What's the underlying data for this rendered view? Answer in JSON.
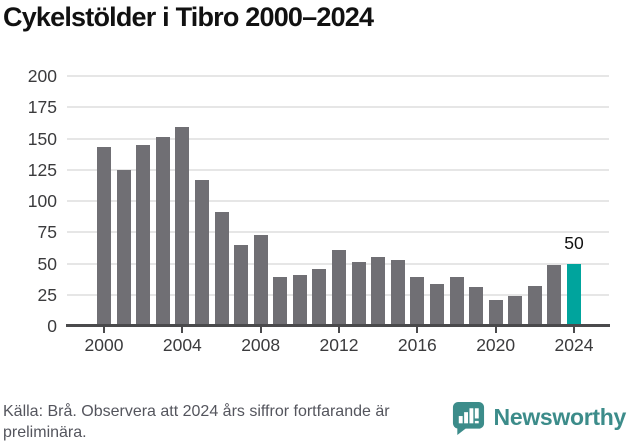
{
  "title": "Cykelstölder i Tibro 2000–2024",
  "chart_data": {
    "type": "bar",
    "title": "Cykelstölder i Tibro 2000–2024",
    "categories": [
      2000,
      2001,
      2002,
      2003,
      2004,
      2005,
      2006,
      2007,
      2008,
      2009,
      2010,
      2011,
      2012,
      2013,
      2014,
      2015,
      2016,
      2017,
      2018,
      2019,
      2020,
      2021,
      2022,
      2023,
      2024
    ],
    "values": [
      143,
      125,
      145,
      151,
      159,
      117,
      91,
      65,
      73,
      39,
      41,
      46,
      61,
      51,
      55,
      53,
      39,
      34,
      39,
      31,
      21,
      24,
      32,
      49,
      50
    ],
    "xlabel": "",
    "ylabel": "",
    "ylim": [
      0,
      200
    ],
    "yticks": [
      0,
      25,
      50,
      75,
      100,
      125,
      150,
      175,
      200
    ],
    "xticks": [
      2000,
      2004,
      2008,
      2012,
      2016,
      2020,
      2024
    ],
    "grid": true,
    "legend_position": "none",
    "bar_color": "#706f74",
    "gridline_color": "#e6e6e6",
    "axis_color": "#4a4a4c",
    "highlight": {
      "year": 2024,
      "color": "#00a49d",
      "label": "50"
    }
  },
  "footer": {
    "source": "Källa: Brå. Observera att 2024 års siffror fortfarande är preliminära.",
    "brand": "Newsworthy",
    "brand_color": "#3c8c8a"
  },
  "icons": {
    "brand_logo": "bar-chart-speech-bubble-icon"
  }
}
